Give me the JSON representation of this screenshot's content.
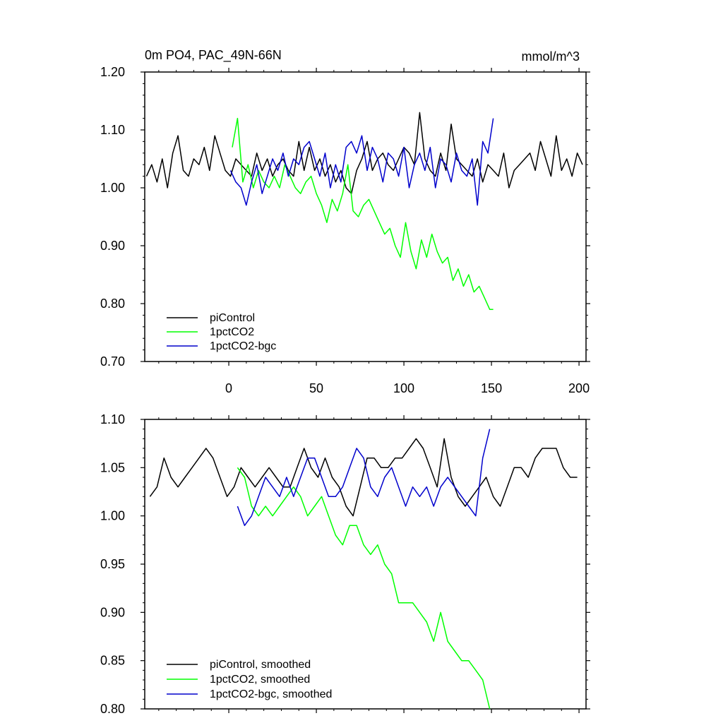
{
  "chart_data": [
    {
      "type": "line",
      "title": "0m PO4, PAC_49N-66N",
      "units": "mmol/m^3",
      "xlim": [
        -48,
        204
      ],
      "ylim": [
        0.7,
        1.2
      ],
      "xticks": [
        0,
        50,
        100,
        150,
        200
      ],
      "xtick_labels": [
        "0",
        "50",
        "100",
        "150",
        "200"
      ],
      "yticks": [
        0.7,
        0.8,
        0.9,
        1.0,
        1.1,
        1.2
      ],
      "ytick_labels": [
        "0.70",
        "0.80",
        "0.90",
        "1.00",
        "1.10",
        "1.20"
      ],
      "legend_position": "bottom-left",
      "series": [
        {
          "name": "piControl",
          "color": "#000000",
          "x": [
            -47,
            -44,
            -41,
            -38,
            -35,
            -32,
            -29,
            -26,
            -23,
            -20,
            -17,
            -14,
            -11,
            -8,
            -5,
            -2,
            1,
            4,
            7,
            10,
            13,
            16,
            19,
            22,
            25,
            28,
            31,
            34,
            37,
            40,
            43,
            46,
            49,
            52,
            55,
            58,
            61,
            64,
            67,
            70,
            73,
            76,
            79,
            82,
            85,
            88,
            91,
            94,
            97,
            100,
            103,
            106,
            109,
            112,
            115,
            118,
            121,
            124,
            127,
            130,
            133,
            136,
            139,
            142,
            145,
            148,
            151,
            154,
            157,
            160,
            163,
            166,
            169,
            172,
            175,
            178,
            181,
            184,
            187,
            190,
            193,
            196,
            199,
            202
          ],
          "y": [
            1.02,
            1.04,
            1.01,
            1.05,
            1.0,
            1.06,
            1.09,
            1.03,
            1.02,
            1.05,
            1.04,
            1.07,
            1.03,
            1.09,
            1.06,
            1.03,
            1.02,
            1.05,
            1.04,
            1.03,
            1.02,
            1.06,
            1.03,
            1.05,
            1.02,
            1.04,
            1.05,
            1.03,
            1.02,
            1.08,
            1.03,
            1.07,
            1.03,
            1.05,
            1.02,
            1.04,
            1.01,
            1.03,
            1.0,
            0.99,
            1.03,
            1.05,
            1.08,
            1.03,
            1.05,
            1.06,
            1.04,
            1.03,
            1.05,
            1.07,
            1.06,
            1.04,
            1.13,
            1.05,
            1.03,
            1.02,
            1.06,
            1.03,
            1.11,
            1.05,
            1.04,
            1.03,
            1.02,
            1.05,
            1.01,
            1.04,
            1.03,
            1.02,
            1.06,
            1.0,
            1.03,
            1.04,
            1.05,
            1.06,
            1.03,
            1.08,
            1.05,
            1.02,
            1.09,
            1.03,
            1.05,
            1.02,
            1.06,
            1.04
          ]
        },
        {
          "name": "1pctCO2",
          "color": "#00ff00",
          "x": [
            2,
            5,
            8,
            11,
            14,
            17,
            20,
            23,
            26,
            29,
            32,
            35,
            38,
            41,
            44,
            47,
            50,
            53,
            56,
            59,
            62,
            65,
            68,
            71,
            74,
            77,
            80,
            83,
            86,
            89,
            92,
            95,
            98,
            101,
            104,
            107,
            110,
            113,
            116,
            119,
            122,
            125,
            128,
            131,
            134,
            137,
            140,
            143,
            146,
            149,
            151
          ],
          "y": [
            1.07,
            1.12,
            1.01,
            1.04,
            1.0,
            1.03,
            1.01,
            1.0,
            1.02,
            1.0,
            1.04,
            1.02,
            1.0,
            0.99,
            1.01,
            1.02,
            0.99,
            0.97,
            0.94,
            0.98,
            0.96,
            0.99,
            1.04,
            0.96,
            0.95,
            0.97,
            0.98,
            0.96,
            0.94,
            0.92,
            0.93,
            0.9,
            0.88,
            0.94,
            0.89,
            0.86,
            0.91,
            0.88,
            0.92,
            0.89,
            0.87,
            0.88,
            0.84,
            0.86,
            0.83,
            0.85,
            0.82,
            0.83,
            0.81,
            0.79,
            0.79
          ]
        },
        {
          "name": "1pctCO2-bgc",
          "color": "#0000cc",
          "x": [
            1,
            4,
            7,
            10,
            13,
            16,
            19,
            22,
            25,
            28,
            31,
            34,
            37,
            40,
            43,
            46,
            49,
            52,
            55,
            58,
            61,
            64,
            67,
            70,
            73,
            76,
            79,
            82,
            85,
            88,
            91,
            94,
            97,
            100,
            103,
            106,
            109,
            112,
            115,
            118,
            121,
            124,
            127,
            130,
            133,
            136,
            139,
            142,
            145,
            148,
            151
          ],
          "y": [
            1.03,
            1.01,
            1.0,
            0.97,
            1.01,
            1.04,
            0.99,
            1.02,
            1.05,
            1.03,
            1.06,
            1.02,
            1.05,
            1.04,
            1.07,
            1.08,
            1.05,
            1.02,
            1.06,
            1.0,
            1.04,
            1.01,
            1.07,
            1.08,
            1.06,
            1.09,
            1.03,
            1.07,
            1.05,
            1.01,
            1.06,
            1.05,
            1.02,
            1.07,
            1.0,
            1.04,
            1.06,
            1.03,
            1.07,
            1.0,
            1.05,
            1.04,
            1.01,
            1.06,
            1.03,
            1.02,
            1.05,
            0.97,
            1.08,
            1.06,
            1.12
          ]
        }
      ]
    },
    {
      "type": "line",
      "title": "",
      "xlim": [
        -48,
        204
      ],
      "ylim": [
        0.8,
        1.1
      ],
      "xticks": [
        0,
        50,
        100,
        150,
        200
      ],
      "yticks": [
        0.8,
        0.85,
        0.9,
        0.95,
        1.0,
        1.05,
        1.1
      ],
      "ytick_labels": [
        "0.80",
        "0.85",
        "0.90",
        "0.95",
        "1.00",
        "1.05",
        "1.10"
      ],
      "legend_position": "bottom-left",
      "series": [
        {
          "name": "piControl, smoothed",
          "color": "#000000",
          "x": [
            -45,
            -41,
            -37,
            -33,
            -29,
            -25,
            -21,
            -17,
            -13,
            -9,
            -5,
            -1,
            3,
            7,
            11,
            15,
            19,
            23,
            27,
            31,
            35,
            39,
            43,
            47,
            51,
            55,
            59,
            63,
            67,
            71,
            75,
            79,
            83,
            87,
            91,
            95,
            99,
            103,
            107,
            111,
            115,
            119,
            123,
            127,
            131,
            135,
            139,
            143,
            147,
            151,
            155,
            159,
            163,
            167,
            171,
            175,
            179,
            183,
            187,
            191,
            195,
            199
          ],
          "y": [
            1.02,
            1.03,
            1.06,
            1.04,
            1.03,
            1.04,
            1.05,
            1.06,
            1.07,
            1.06,
            1.04,
            1.02,
            1.03,
            1.05,
            1.04,
            1.03,
            1.04,
            1.05,
            1.04,
            1.03,
            1.03,
            1.05,
            1.07,
            1.05,
            1.04,
            1.06,
            1.04,
            1.03,
            1.01,
            1.0,
            1.03,
            1.06,
            1.06,
            1.05,
            1.05,
            1.06,
            1.06,
            1.07,
            1.08,
            1.07,
            1.05,
            1.03,
            1.08,
            1.04,
            1.02,
            1.01,
            1.02,
            1.03,
            1.04,
            1.02,
            1.01,
            1.03,
            1.05,
            1.05,
            1.04,
            1.06,
            1.07,
            1.07,
            1.07,
            1.05,
            1.04,
            1.04
          ]
        },
        {
          "name": "1pctCO2, smoothed",
          "color": "#00ff00",
          "x": [
            5,
            9,
            13,
            17,
            21,
            25,
            29,
            33,
            37,
            41,
            45,
            49,
            53,
            57,
            61,
            65,
            69,
            73,
            77,
            81,
            85,
            89,
            93,
            97,
            101,
            105,
            109,
            113,
            117,
            121,
            125,
            129,
            133,
            137,
            141,
            145,
            149
          ],
          "y": [
            1.05,
            1.04,
            1.01,
            1.0,
            1.01,
            1.0,
            1.01,
            1.02,
            1.03,
            1.02,
            1.0,
            1.01,
            1.02,
            1.0,
            0.98,
            0.97,
            0.99,
            0.99,
            0.97,
            0.96,
            0.97,
            0.95,
            0.94,
            0.91,
            0.91,
            0.91,
            0.9,
            0.89,
            0.87,
            0.9,
            0.87,
            0.86,
            0.85,
            0.85,
            0.84,
            0.83,
            0.8
          ]
        },
        {
          "name": "1pctCO2-bgc, smoothed",
          "color": "#0000cc",
          "x": [
            5,
            9,
            13,
            17,
            21,
            25,
            29,
            33,
            37,
            41,
            45,
            49,
            53,
            57,
            61,
            65,
            69,
            73,
            77,
            81,
            85,
            89,
            93,
            97,
            101,
            105,
            109,
            113,
            117,
            121,
            125,
            129,
            133,
            137,
            141,
            145,
            149
          ],
          "y": [
            1.01,
            0.99,
            1.0,
            1.02,
            1.04,
            1.03,
            1.02,
            1.04,
            1.02,
            1.04,
            1.06,
            1.06,
            1.04,
            1.02,
            1.02,
            1.03,
            1.05,
            1.07,
            1.06,
            1.03,
            1.02,
            1.04,
            1.05,
            1.03,
            1.01,
            1.03,
            1.02,
            1.03,
            1.01,
            1.03,
            1.04,
            1.03,
            1.02,
            1.01,
            1.0,
            1.06,
            1.09
          ]
        }
      ]
    }
  ]
}
